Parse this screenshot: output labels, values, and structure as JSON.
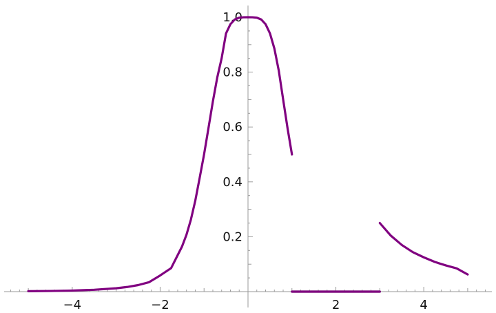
{
  "chart_data": {
    "type": "line",
    "title": "",
    "xlabel": "",
    "ylabel": "",
    "xlim": [
      -5.55,
      5.55
    ],
    "ylim": [
      0,
      1.0
    ],
    "grid": false,
    "x_major_ticks": [
      -4,
      -2,
      2,
      4
    ],
    "y_major_ticks": [
      0.2,
      0.4,
      0.6,
      0.8,
      1.0
    ],
    "x_tick_labels": [
      "−4",
      "−2",
      "2",
      "4"
    ],
    "y_tick_labels": [
      "0.2",
      "0.4",
      "0.6",
      "0.8",
      "1.0"
    ],
    "series_color": "#800080",
    "flat_segment_color": "#7a8f7a",
    "segments": [
      {
        "domain": [
          -5,
          1
        ],
        "x": [
          -5,
          -4.5,
          -4,
          -3.5,
          -3,
          -2.75,
          -2.5,
          -2.25,
          -2,
          -1.75,
          -1.5,
          -1.4,
          -1.3,
          -1.2,
          -1.1,
          -1,
          -0.9,
          -0.8,
          -0.7,
          -0.6,
          -0.5,
          -0.4,
          -0.3,
          -0.2,
          -0.1,
          0,
          0.1,
          0.2,
          0.3,
          0.4,
          0.5,
          0.6,
          0.7,
          0.8,
          0.9,
          1
        ],
        "y": [
          0.0016,
          0.0024,
          0.0039,
          0.0067,
          0.0122,
          0.0169,
          0.0239,
          0.0345,
          0.0588,
          0.0856,
          0.1649,
          0.2075,
          0.2622,
          0.3312,
          0.4146,
          0.5,
          0.5954,
          0.6925,
          0.7802,
          0.8505,
          0.9412,
          0.9747,
          0.9919,
          0.9984,
          0.9999,
          1.0,
          0.9999,
          0.9984,
          0.9919,
          0.9747,
          0.9412,
          0.886,
          0.8058,
          0.7,
          0.5954,
          0.5
        ]
      },
      {
        "domain": [
          1,
          3
        ],
        "x": [
          1,
          3
        ],
        "y": [
          0,
          0
        ]
      },
      {
        "domain": [
          3,
          5
        ],
        "x": [
          3,
          3.25,
          3.5,
          3.75,
          4,
          4.25,
          4.5,
          4.75,
          5
        ],
        "y": [
          0.25,
          0.2041,
          0.1701,
          0.144,
          0.125,
          0.1083,
          0.0956,
          0.0847,
          0.0625
        ]
      }
    ]
  }
}
